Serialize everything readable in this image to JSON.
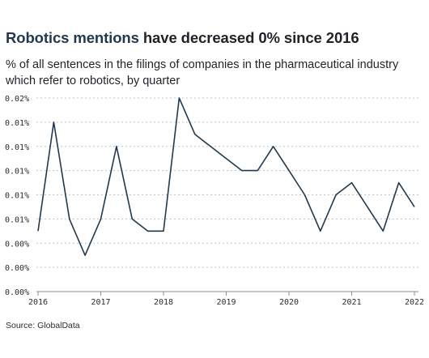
{
  "header": {
    "title_highlight": "Robotics mentions",
    "title_rest": "have decreased 0% since 2016",
    "subtitle": "% of all sentences in the filings of companies in the pharmaceutical industry which refer to robotics, by quarter"
  },
  "source": "Source: GlobalData",
  "colors": {
    "line": "#22394d",
    "grid": "#bfc3c7",
    "highlight": "#22394d"
  },
  "chart_data": {
    "type": "line",
    "title": "",
    "xlabel": "",
    "ylabel": "",
    "grid": true,
    "y_tick_labels": [
      "0.00%",
      "0.00%",
      "0.00%",
      "0.01%",
      "0.01%",
      "0.01%",
      "0.01%",
      "0.01%",
      "0.02%"
    ],
    "y_ticks": [
      0,
      0.002,
      0.004,
      0.006,
      0.008,
      0.01,
      0.012,
      0.014,
      0.016
    ],
    "ylim": [
      0,
      0.016
    ],
    "x_tick_labels": [
      "2016",
      "2017",
      "2018",
      "2019",
      "2020",
      "2021",
      "2022"
    ],
    "x_ticks": [
      2016,
      2017,
      2018,
      2019,
      2020,
      2021,
      2022
    ],
    "xlim": [
      2016,
      2022
    ],
    "series": [
      {
        "x": [
          2016.0,
          2016.25,
          2016.5,
          2016.75,
          2017.0,
          2017.25,
          2017.5,
          2017.75,
          2018.0,
          2018.25,
          2018.5,
          2018.75,
          2019.0,
          2019.25,
          2019.5,
          2019.75,
          2020.0,
          2020.25,
          2020.5,
          2020.75,
          2021.0,
          2021.25,
          2021.5,
          2021.75,
          2022.0
        ],
        "values": [
          0.005,
          0.014,
          0.006,
          0.003,
          0.006,
          0.012,
          0.006,
          0.005,
          0.005,
          0.016,
          0.013,
          0.012,
          0.011,
          0.01,
          0.01,
          0.012,
          0.01,
          0.008,
          0.005,
          0.008,
          0.009,
          0.007,
          0.005,
          0.009,
          0.007
        ]
      }
    ]
  }
}
